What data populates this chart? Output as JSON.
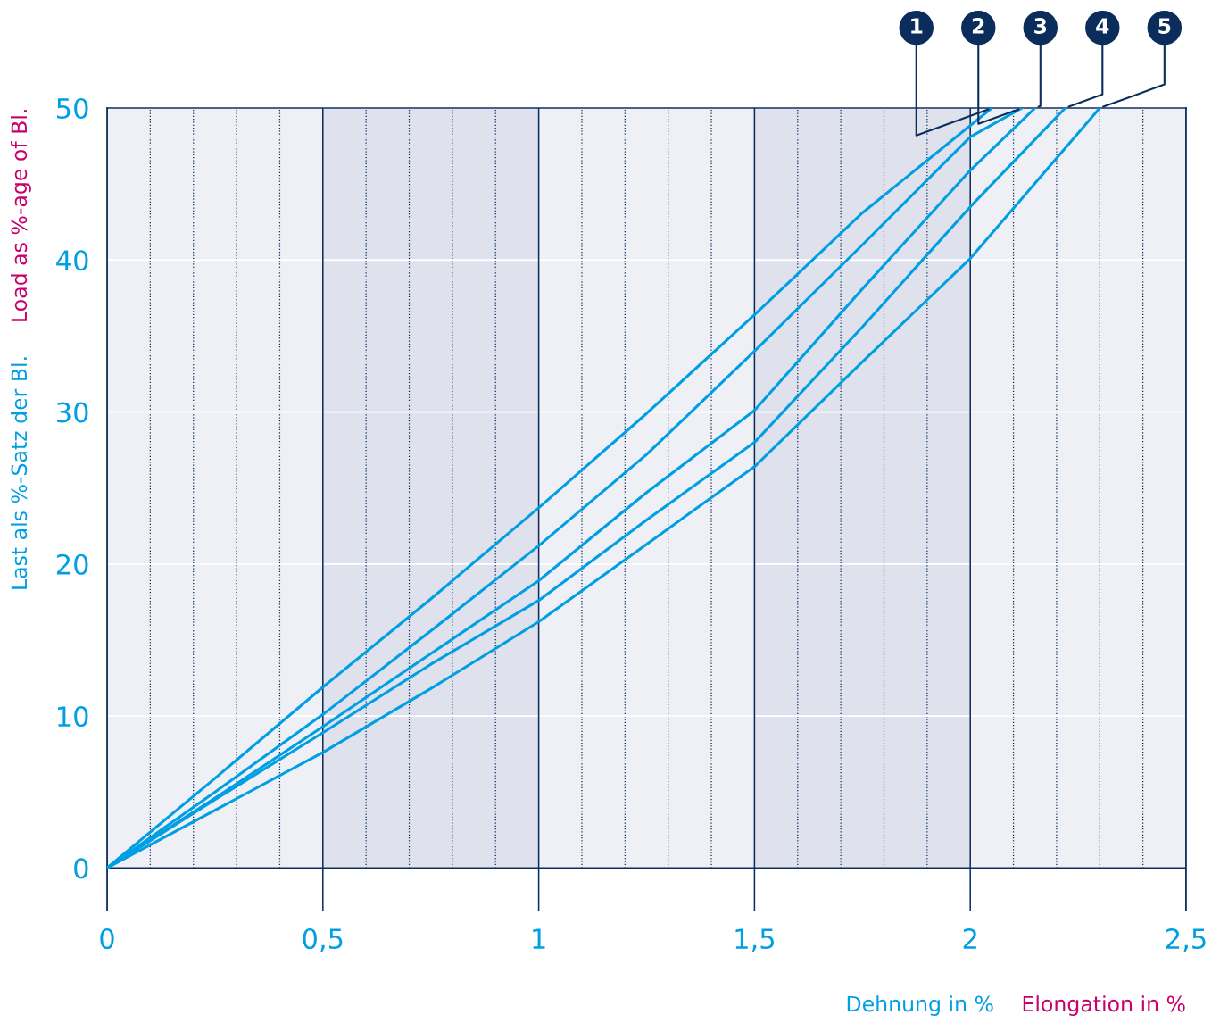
{
  "chart_data": {
    "type": "line",
    "xlabel": "Dehnung in %",
    "ylabel": "Last als %-Satz der Bl.",
    "annotations": [
      "Elongation in %",
      "Load as %-age of Bl."
    ],
    "series": [
      {
        "name": "1",
        "color": "#009fe3",
        "x": [
          0,
          0.25,
          0.5,
          0.75,
          1,
          1.25,
          1.5,
          1.75,
          2.05
        ],
        "values": [
          0,
          5.9,
          11.9,
          17.7,
          23.7,
          29.9,
          36.4,
          43.1,
          50
        ]
      },
      {
        "name": "2",
        "color": "#009fe3",
        "x": [
          0,
          0.25,
          0.5,
          0.75,
          1,
          1.25,
          1.5,
          1.75,
          2,
          2.12
        ],
        "values": [
          0,
          5.0,
          10.1,
          15.6,
          21.2,
          27.2,
          34.0,
          41.0,
          48.1,
          50
        ]
      },
      {
        "name": "3",
        "color": "#009fe3",
        "x": [
          0,
          0.25,
          0.5,
          0.75,
          1,
          1.25,
          1.5,
          1.75,
          2,
          2.15
        ],
        "values": [
          0,
          4.6,
          9.3,
          14.1,
          18.9,
          24.7,
          30.1,
          38.1,
          45.9,
          50
        ]
      },
      {
        "name": "4",
        "color": "#009fe3",
        "x": [
          0,
          0.25,
          0.5,
          0.75,
          1,
          1.25,
          1.5,
          1.75,
          2,
          2.22
        ],
        "values": [
          0,
          4.5,
          8.9,
          13.4,
          17.6,
          22.9,
          28.0,
          35.6,
          43.5,
          50
        ]
      },
      {
        "name": "5",
        "color": "#009fe3",
        "x": [
          0,
          0.25,
          0.5,
          0.75,
          1,
          1.25,
          1.5,
          1.75,
          2,
          2.3
        ],
        "values": [
          0,
          3.8,
          7.6,
          11.8,
          16.2,
          21.3,
          26.4,
          33.3,
          40.1,
          50
        ]
      }
    ],
    "xlim": [
      0,
      2.5
    ],
    "ylim": [
      -2.8,
      50
    ],
    "xticks": [
      0,
      {
        "value": 0.5,
        "label": "0,5"
      },
      1,
      {
        "value": 1.5,
        "label": "1,5"
      },
      2,
      {
        "value": 2.5,
        "label": "2,5"
      }
    ],
    "yticks": [
      0,
      10,
      20,
      30,
      40,
      50
    ],
    "bands": [
      {
        "axis": "x",
        "from": 0,
        "to": 0.5,
        "color": "#eef0f6"
      },
      {
        "axis": "x",
        "from": 0.5,
        "to": 1,
        "color": "#dfe2ed"
      },
      {
        "axis": "x",
        "from": 1,
        "to": 1.5,
        "color": "#eef0f6"
      },
      {
        "axis": "x",
        "from": 1.5,
        "to": 2,
        "color": "#dfe2ed"
      },
      {
        "axis": "x",
        "from": 2,
        "to": 2.5,
        "color": "#eef0f6"
      }
    ],
    "ref_lines": [
      {
        "axis": "x",
        "value": 0.1,
        "line_style": "dotted"
      },
      {
        "axis": "x",
        "value": 0.2,
        "line_style": "dotted"
      },
      {
        "axis": "x",
        "value": 0.3,
        "line_style": "dotted"
      },
      {
        "axis": "x",
        "value": 0.4,
        "line_style": "dotted"
      },
      {
        "axis": "x",
        "value": 0.6,
        "line_style": "dotted"
      },
      {
        "axis": "x",
        "value": 0.7,
        "line_style": "dotted"
      },
      {
        "axis": "x",
        "value": 0.8,
        "line_style": "dotted"
      },
      {
        "axis": "x",
        "value": 0.9,
        "line_style": "dotted"
      },
      {
        "axis": "x",
        "value": 1.1,
        "line_style": "dotted"
      },
      {
        "axis": "x",
        "value": 1.2,
        "line_style": "dotted"
      },
      {
        "axis": "x",
        "value": 1.3,
        "line_style": "dotted"
      },
      {
        "axis": "x",
        "value": 1.4,
        "line_style": "dotted"
      },
      {
        "axis": "x",
        "value": 1.6,
        "line_style": "dotted"
      },
      {
        "axis": "x",
        "value": 1.7,
        "line_style": "dotted"
      },
      {
        "axis": "x",
        "value": 1.8,
        "line_style": "dotted"
      },
      {
        "axis": "x",
        "value": 1.9,
        "line_style": "dotted"
      },
      {
        "axis": "x",
        "value": 2.1,
        "line_style": "dotted"
      },
      {
        "axis": "x",
        "value": 2.2,
        "line_style": "dotted"
      },
      {
        "axis": "x",
        "value": 2.3,
        "line_style": "dotted"
      },
      {
        "axis": "x",
        "value": 2.4,
        "line_style": "dotted"
      }
    ],
    "grid": true,
    "legend": false,
    "marker": "none",
    "line_style": "solid"
  }
}
